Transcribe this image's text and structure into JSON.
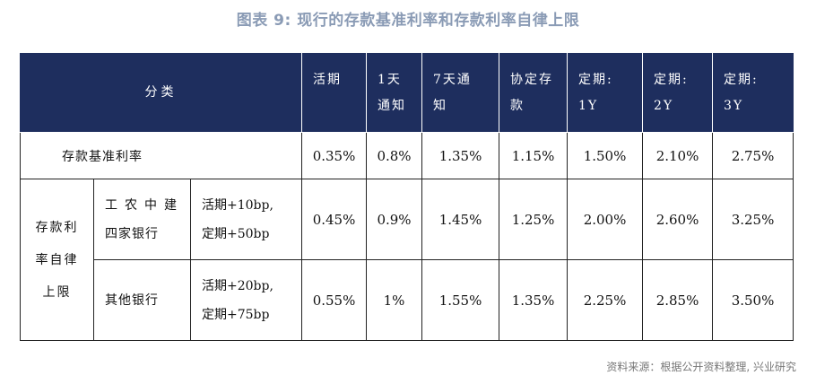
{
  "title": "图表 9:  现行的存款基准利率和存款利率自律上限",
  "header": {
    "category": "分类",
    "columns": [
      [
        "活期"
      ],
      [
        "1天",
        "通知"
      ],
      [
        "7天通",
        "知"
      ],
      [
        "协定存",
        "款"
      ],
      [
        "定期:",
        "1Y"
      ],
      [
        "定期:",
        "2Y"
      ],
      [
        "定期:",
        "3Y"
      ]
    ]
  },
  "base_row": {
    "label": "存款基准利率",
    "values": [
      "0.35%",
      "0.8%",
      "1.35%",
      "1.15%",
      "1.50%",
      "2.10%",
      "2.75%"
    ]
  },
  "group_label": [
    "存款利",
    "率自律",
    "上限"
  ],
  "cap_rows": [
    {
      "bank": [
        "工农中建",
        "四家银行"
      ],
      "rule": [
        "活期+10bp,",
        "定期+50bp"
      ],
      "values": [
        "0.45%",
        "0.9%",
        "1.45%",
        "1.25%",
        "2.00%",
        "2.60%",
        "3.25%"
      ]
    },
    {
      "bank": [
        "其他银行"
      ],
      "rule": [
        "活期+20bp,",
        "定期+75bp"
      ],
      "values": [
        "0.55%",
        "1%",
        "1.55%",
        "1.35%",
        "2.25%",
        "2.85%",
        "3.50%"
      ]
    }
  ],
  "source": "资料来源：根据公开资料整理, 兴业研究",
  "colors": {
    "header_bg": "#1e2e5e",
    "title": "#8a9bb5"
  }
}
